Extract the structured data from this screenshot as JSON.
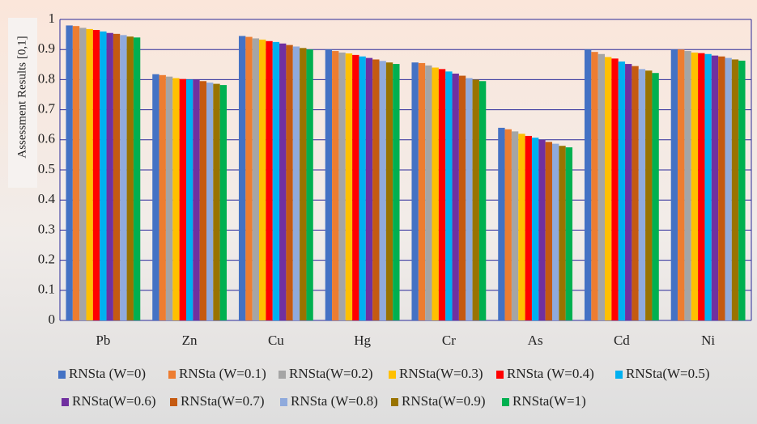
{
  "chart_data": {
    "type": "bar",
    "y_label": "Assessment Results [0,1]",
    "categories": [
      "Pb",
      "Zn",
      "Cu",
      "Hg",
      "Cr",
      "As",
      "Cd",
      "Ni"
    ],
    "series": [
      {
        "name": "RNSta (W=0)",
        "color": "#4472c4",
        "values": [
          0.98,
          0.818,
          0.945,
          0.9,
          0.857,
          0.64,
          0.9,
          0.9
        ]
      },
      {
        "name": "RNSta (W=0.1)",
        "color": "#ed7d31",
        "values": [
          0.978,
          0.815,
          0.942,
          0.895,
          0.855,
          0.635,
          0.892,
          0.9
        ]
      },
      {
        "name": "RNSta(W=0.2)",
        "color": "#a5a5a5",
        "values": [
          0.972,
          0.81,
          0.937,
          0.89,
          0.847,
          0.628,
          0.885,
          0.895
        ]
      },
      {
        "name": "RNSta(W=0.3)",
        "color": "#ffc000",
        "values": [
          0.968,
          0.805,
          0.933,
          0.887,
          0.84,
          0.62,
          0.875,
          0.89
        ]
      },
      {
        "name": "RNSta (W=0.4)",
        "color": "#ff0000",
        "values": [
          0.965,
          0.802,
          0.928,
          0.882,
          0.835,
          0.613,
          0.87,
          0.888
        ]
      },
      {
        "name": "RNSta(W=0.5)",
        "color": "#00b0f0",
        "values": [
          0.96,
          0.8,
          0.925,
          0.877,
          0.827,
          0.607,
          0.86,
          0.885
        ]
      },
      {
        "name": "RNSta(W=0.6)",
        "color": "#7030a0",
        "values": [
          0.955,
          0.8,
          0.92,
          0.872,
          0.82,
          0.6,
          0.852,
          0.88
        ]
      },
      {
        "name": "RNSta(W=0.7)",
        "color": "#c55a11",
        "values": [
          0.952,
          0.795,
          0.915,
          0.867,
          0.813,
          0.593,
          0.845,
          0.877
        ]
      },
      {
        "name": "RNSta (W=0.8)",
        "color": "#8faadc",
        "values": [
          0.948,
          0.79,
          0.91,
          0.862,
          0.805,
          0.587,
          0.835,
          0.872
        ]
      },
      {
        "name": "RNSta(W=0.9)",
        "color": "#997300",
        "values": [
          0.943,
          0.786,
          0.905,
          0.857,
          0.8,
          0.58,
          0.83,
          0.867
        ]
      },
      {
        "name": "RNSta(W=1)",
        "color": "#00b050",
        "values": [
          0.94,
          0.782,
          0.9,
          0.852,
          0.795,
          0.575,
          0.822,
          0.863
        ]
      }
    ],
    "ylim": [
      0,
      1
    ],
    "yticks": [
      0,
      0.1,
      0.2,
      0.3,
      0.4,
      0.5,
      0.6,
      0.7,
      0.8,
      0.9,
      1
    ],
    "grid": true
  }
}
